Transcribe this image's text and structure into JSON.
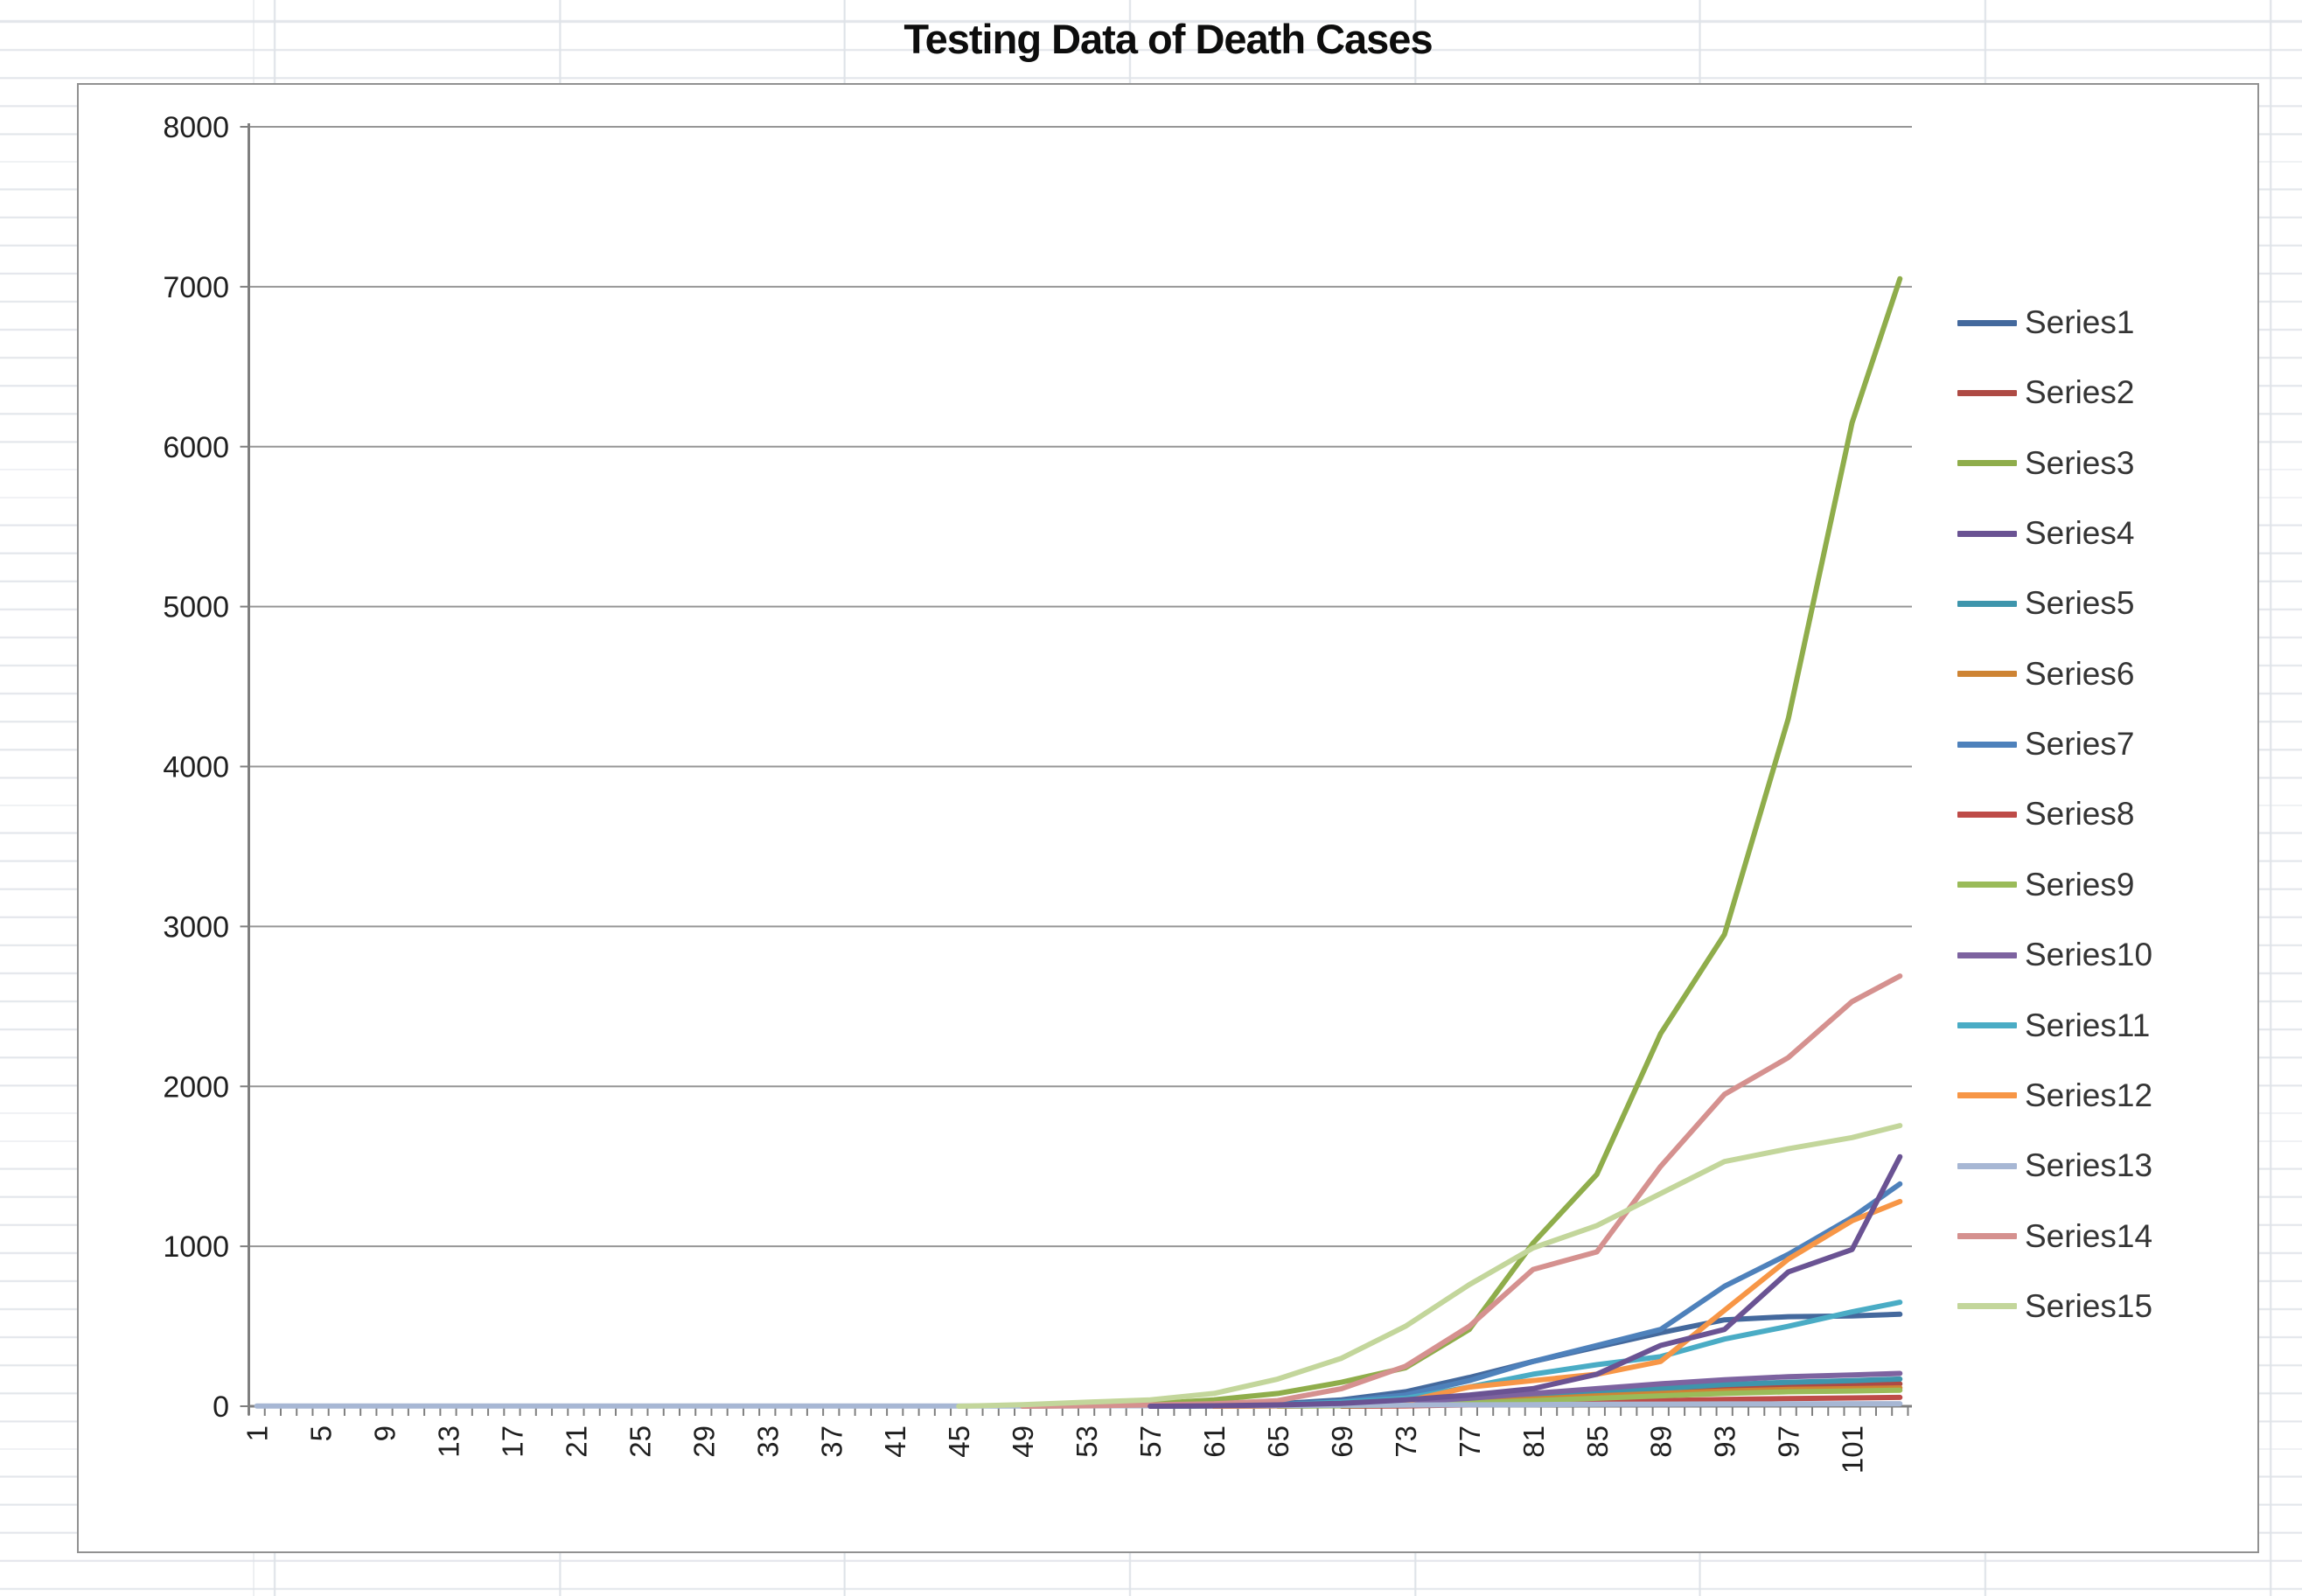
{
  "chart": {
    "title": "Testing Data of Death Cases"
  },
  "chart_data": {
    "type": "line",
    "title": "Testing Data of Death Cases",
    "xlabel": "",
    "ylabel": "",
    "x_range": [
      1,
      104
    ],
    "ylim": [
      0,
      8000
    ],
    "grid": true,
    "legend_position": "right",
    "y_ticks": [
      0,
      1000,
      2000,
      3000,
      4000,
      5000,
      6000,
      7000,
      8000
    ],
    "x_tick_labels": [
      "1",
      "5",
      "9",
      "13",
      "17",
      "21",
      "25",
      "29",
      "33",
      "37",
      "41",
      "45",
      "49",
      "53",
      "57",
      "61",
      "65",
      "69",
      "73",
      "77",
      "81",
      "85",
      "89",
      "93",
      "97",
      "101"
    ],
    "x_sample_points": [
      1,
      5,
      9,
      13,
      17,
      21,
      25,
      29,
      33,
      37,
      41,
      45,
      49,
      53,
      57,
      61,
      65,
      69,
      73,
      77,
      81,
      85,
      89,
      93,
      97,
      101,
      104
    ],
    "series": [
      {
        "name": "Series1",
        "color": "#44699D",
        "values": [
          0,
          0,
          0,
          0,
          0,
          0,
          0,
          0,
          0,
          0,
          0,
          0,
          0,
          0,
          0,
          5,
          15,
          40,
          90,
          180,
          280,
          370,
          460,
          540,
          560,
          565,
          575
        ]
      },
      {
        "name": "Series2",
        "color": "#AE4A44",
        "values": [
          0,
          0,
          0,
          0,
          0,
          0,
          0,
          0,
          0,
          0,
          0,
          0,
          0,
          0,
          0,
          2,
          8,
          15,
          30,
          55,
          75,
          95,
          110,
          120,
          130,
          135,
          140
        ]
      },
      {
        "name": "Series3",
        "color": "#8FAD4B",
        "values": [
          0,
          0,
          0,
          0,
          0,
          0,
          0,
          0,
          0,
          0,
          0,
          0,
          0,
          5,
          15,
          40,
          80,
          150,
          240,
          480,
          1020,
          1450,
          2330,
          2950,
          4300,
          6150,
          7050
        ]
      },
      {
        "name": "Series4",
        "color": "#6A5393",
        "values": [
          0,
          0,
          0,
          0,
          0,
          0,
          0,
          0,
          0,
          0,
          0,
          0,
          0,
          0,
          0,
          3,
          8,
          18,
          40,
          70,
          110,
          200,
          380,
          480,
          840,
          980,
          1560
        ]
      },
      {
        "name": "Series5",
        "color": "#3E95AC",
        "values": [
          0,
          0,
          0,
          0,
          0,
          0,
          0,
          0,
          0,
          0,
          0,
          0,
          0,
          0,
          0,
          0,
          3,
          8,
          15,
          35,
          60,
          85,
          110,
          135,
          150,
          160,
          170
        ]
      },
      {
        "name": "Series6",
        "color": "#CE8434",
        "values": [
          0,
          0,
          0,
          0,
          0,
          0,
          0,
          0,
          0,
          0,
          0,
          0,
          0,
          0,
          0,
          0,
          3,
          6,
          10,
          25,
          45,
          65,
          80,
          95,
          105,
          110,
          115
        ]
      },
      {
        "name": "Series7",
        "color": "#4E81BB",
        "values": [
          0,
          0,
          0,
          0,
          0,
          0,
          0,
          0,
          0,
          0,
          0,
          0,
          0,
          0,
          0,
          3,
          10,
          30,
          70,
          160,
          280,
          380,
          480,
          750,
          950,
          1180,
          1390
        ]
      },
      {
        "name": "Series8",
        "color": "#BE4B48",
        "values": [
          0,
          0,
          0,
          0,
          0,
          0,
          0,
          0,
          0,
          0,
          0,
          0,
          0,
          0,
          0,
          0,
          0,
          0,
          2,
          8,
          15,
          25,
          35,
          42,
          48,
          52,
          55
        ]
      },
      {
        "name": "Series9",
        "color": "#9ABB59",
        "values": [
          0,
          0,
          0,
          0,
          0,
          0,
          0,
          0,
          0,
          0,
          0,
          0,
          0,
          0,
          0,
          0,
          0,
          3,
          8,
          20,
          35,
          50,
          65,
          80,
          90,
          95,
          100
        ]
      },
      {
        "name": "Series10",
        "color": "#7D63A0",
        "values": [
          0,
          0,
          0,
          0,
          0,
          0,
          0,
          0,
          0,
          0,
          0,
          0,
          0,
          0,
          0,
          0,
          2,
          8,
          25,
          50,
          80,
          110,
          140,
          165,
          185,
          195,
          205
        ]
      },
      {
        "name": "Series11",
        "color": "#4AACC5",
        "values": [
          0,
          0,
          0,
          0,
          0,
          0,
          0,
          0,
          0,
          0,
          0,
          0,
          0,
          0,
          0,
          2,
          8,
          25,
          50,
          120,
          200,
          260,
          310,
          420,
          500,
          590,
          650
        ]
      },
      {
        "name": "Series12",
        "color": "#F79646",
        "values": [
          0,
          0,
          0,
          0,
          0,
          0,
          0,
          0,
          0,
          0,
          0,
          0,
          0,
          0,
          0,
          0,
          3,
          10,
          30,
          120,
          160,
          200,
          280,
          600,
          920,
          1160,
          1280
        ]
      },
      {
        "name": "Series13",
        "color": "#A7B7D4",
        "values": [
          1,
          1,
          1,
          1,
          1,
          1,
          1,
          1,
          1,
          1,
          1,
          1,
          1,
          2,
          3,
          4,
          5,
          6,
          7,
          9,
          10,
          12,
          13,
          14,
          15,
          16,
          16
        ]
      },
      {
        "name": "Series14",
        "color": "#D5918F",
        "values": [
          0,
          0,
          0,
          0,
          0,
          0,
          0,
          0,
          0,
          0,
          0,
          0,
          0,
          3,
          8,
          15,
          35,
          110,
          250,
          500,
          855,
          965,
          1500,
          1950,
          2180,
          2530,
          2690
        ]
      },
      {
        "name": "Series15",
        "color": "#C3D69B",
        "values": [
          0,
          0,
          0,
          0,
          0,
          0,
          0,
          0,
          0,
          0,
          0,
          0,
          10,
          25,
          40,
          80,
          170,
          300,
          500,
          760,
          990,
          1130,
          1330,
          1530,
          1610,
          1680,
          1755
        ]
      }
    ],
    "render_order": [
      0,
      1,
      2,
      4,
      5,
      6,
      7,
      8,
      9,
      10,
      11,
      12,
      13,
      14,
      3
    ]
  }
}
